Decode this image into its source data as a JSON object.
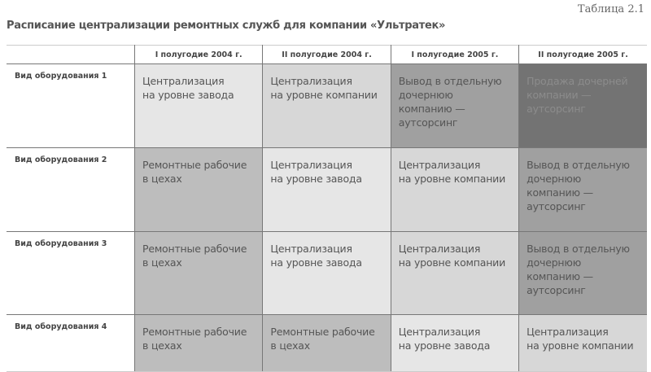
{
  "table_number": "Таблица 2.1",
  "title": "Расписание централизации ремонтных служб для компании «Ультратек»",
  "columns": [
    "",
    "I полугодие 2004 г.",
    "II полугодие 2004 г.",
    "I полугодие 2005 г.",
    "II полугодие 2005 г."
  ],
  "stage_colors": {
    "Ремонтные рабочие в цехах": "#bdbdbd",
    "Централизация на уровне завода": "#e6e6e6",
    "Централизация на уровне компании": "#d7d7d7",
    "Вывод в отдельную дочернюю компанию — аутсорсинг": "#a0a0a0",
    "Продажа дочерней компании — аутсорсинг": "#737373"
  },
  "rows": [
    {
      "label": "Вид оборудования 1",
      "cells": [
        "Централизация\nна уровне завода",
        "Централизация\nна уровне компании",
        "Вывод в отдельную\nдочернюю\nкомпанию —\nаутсорсинг",
        "Продажа дочерней\nкомпании —\nаутсорсинг"
      ],
      "keys": [
        "Централизация на уровне завода",
        "Централизация на уровне компании",
        "Вывод в отдельную дочернюю компанию — аутсорсинг",
        "Продажа дочерней компании — аутсорсинг"
      ]
    },
    {
      "label": "Вид оборудования 2",
      "cells": [
        "Ремонтные рабочие\nв цехах",
        "Централизация\nна уровне завода",
        "Централизация\nна уровне компании",
        "Вывод в отдельную\nдочернюю\nкомпанию —\nаутсорсинг"
      ],
      "keys": [
        "Ремонтные рабочие в цехах",
        "Централизация на уровне завода",
        "Централизация на уровне компании",
        "Вывод в отдельную дочернюю компанию — аутсорсинг"
      ]
    },
    {
      "label": "Вид оборудования 3",
      "cells": [
        "Ремонтные рабочие\nв цехах",
        "Централизация\nна уровне завода",
        "Централизация\nна уровне компании",
        "Вывод в отдельную\nдочернюю\nкомпанию —\nаутсорсинг"
      ],
      "keys": [
        "Ремонтные рабочие в цехах",
        "Централизация на уровне завода",
        "Централизация на уровне компании",
        "Вывод в отдельную дочернюю компанию — аутсорсинг"
      ]
    },
    {
      "label": "Вид оборудования 4",
      "cells": [
        "Ремонтные рабочие\nв цехах",
        "Ремонтные рабочие\nв цехах",
        "Централизация\nна уровне завода",
        "Централизация\nна уровне компании"
      ],
      "keys": [
        "Ремонтные рабочие в цехах",
        "Ремонтные рабочие в цехах",
        "Централизация на уровне завода",
        "Централизация на уровне компании"
      ]
    }
  ]
}
